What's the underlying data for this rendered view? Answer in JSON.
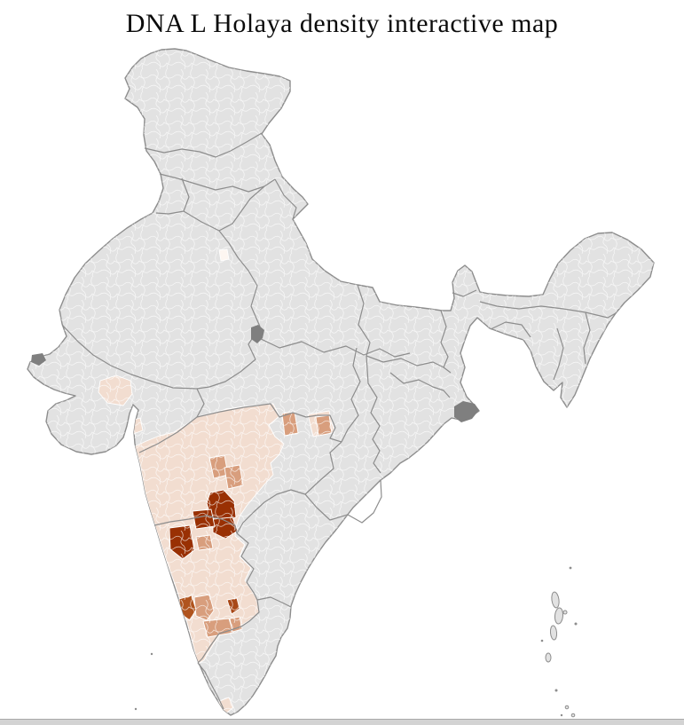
{
  "title": "DNA L Holaya density interactive map",
  "map": {
    "name": "india-district-choropleth",
    "background": "#ffffff",
    "base_region_fill": "#e2e2e2",
    "state_border_color": "#8d8d8d",
    "district_border_color": "#ffffff",
    "water_feature_fill": "#7f7f7f",
    "density_scale": [
      {
        "level": "none",
        "color": "#e2e2e2"
      },
      {
        "level": "low",
        "color": "#f2ddd0"
      },
      {
        "level": "medium",
        "color": "#d89e7d"
      },
      {
        "level": "medium-high",
        "color": "#b0541e"
      },
      {
        "level": "high",
        "color": "#a84818"
      },
      {
        "level": "highest",
        "color": "#993003"
      }
    ],
    "highlighted_areas": [
      {
        "name": "maharashtra-west-karnataka-low-density-belt",
        "level": "low"
      },
      {
        "name": "gujarat-central-low-density-districts",
        "level": "low"
      },
      {
        "name": "gujarat-coastal-low-density-district",
        "level": "low"
      },
      {
        "name": "east-vidarbha-low-density-districts",
        "level": "low"
      },
      {
        "name": "kanyakumari-low-density-district",
        "level": "low"
      },
      {
        "name": "central-maharashtra-medium-district-1",
        "level": "medium"
      },
      {
        "name": "central-maharashtra-medium-district-2",
        "level": "medium"
      },
      {
        "name": "nagpur-area-medium-district",
        "level": "medium"
      },
      {
        "name": "east-border-medium-district",
        "level": "medium"
      },
      {
        "name": "north-karnataka-inner-medium-district",
        "level": "medium"
      },
      {
        "name": "mysore-area-medium-district",
        "level": "medium"
      },
      {
        "name": "south-karnataka-medium-districts",
        "level": "medium"
      },
      {
        "name": "bangalore-south-medium-district",
        "level": "medium"
      },
      {
        "name": "coastal-karnataka-medium-high-district",
        "level": "medium-high"
      },
      {
        "name": "bangalore-area-high-district",
        "level": "high"
      },
      {
        "name": "north-karnataka-highest-cluster-north",
        "level": "highest"
      },
      {
        "name": "north-karnataka-highest-cluster-east",
        "level": "highest"
      },
      {
        "name": "north-karnataka-highest-cluster-center",
        "level": "highest"
      },
      {
        "name": "north-karnataka-highest-cluster-west",
        "level": "highest"
      }
    ]
  },
  "scrollbar": {
    "orientation": "horizontal",
    "track_color": "#d9d9d9"
  }
}
